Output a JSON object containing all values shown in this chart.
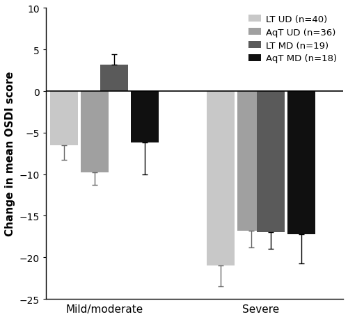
{
  "groups": [
    "Mild/moderate",
    "Severe"
  ],
  "categories": [
    "LT UD (n=40)",
    "AqT UD (n=36)",
    "LT MD (n=19)",
    "AqT MD (n=18)"
  ],
  "colors": [
    "#c8c8c8",
    "#a0a0a0",
    "#5a5a5a",
    "#101010"
  ],
  "bar_values": [
    [
      -6.5,
      -9.8,
      3.2,
      -6.2
    ],
    [
      -21.0,
      -16.8,
      -17.0,
      -17.2
    ]
  ],
  "error_lower": [
    [
      1.8,
      1.5,
      0.0,
      3.8
    ],
    [
      2.5,
      2.0,
      2.0,
      3.5
    ]
  ],
  "error_upper": [
    [
      0.0,
      0.0,
      1.2,
      0.0
    ],
    [
      0.0,
      0.0,
      0.0,
      0.0
    ]
  ],
  "ylabel": "Change in mean OSDI score",
  "ylim": [
    -25,
    10
  ],
  "yticks": [
    -25,
    -20,
    -15,
    -10,
    -5,
    0,
    5,
    10
  ],
  "bar_width": 0.72,
  "figsize": [
    5.0,
    4.6
  ],
  "dpi": 100,
  "background_color": "#ffffff",
  "legend_fontsize": 9.5,
  "ylabel_fontsize": 11,
  "tick_fontsize": 10,
  "xlabel_fontsize": 11
}
